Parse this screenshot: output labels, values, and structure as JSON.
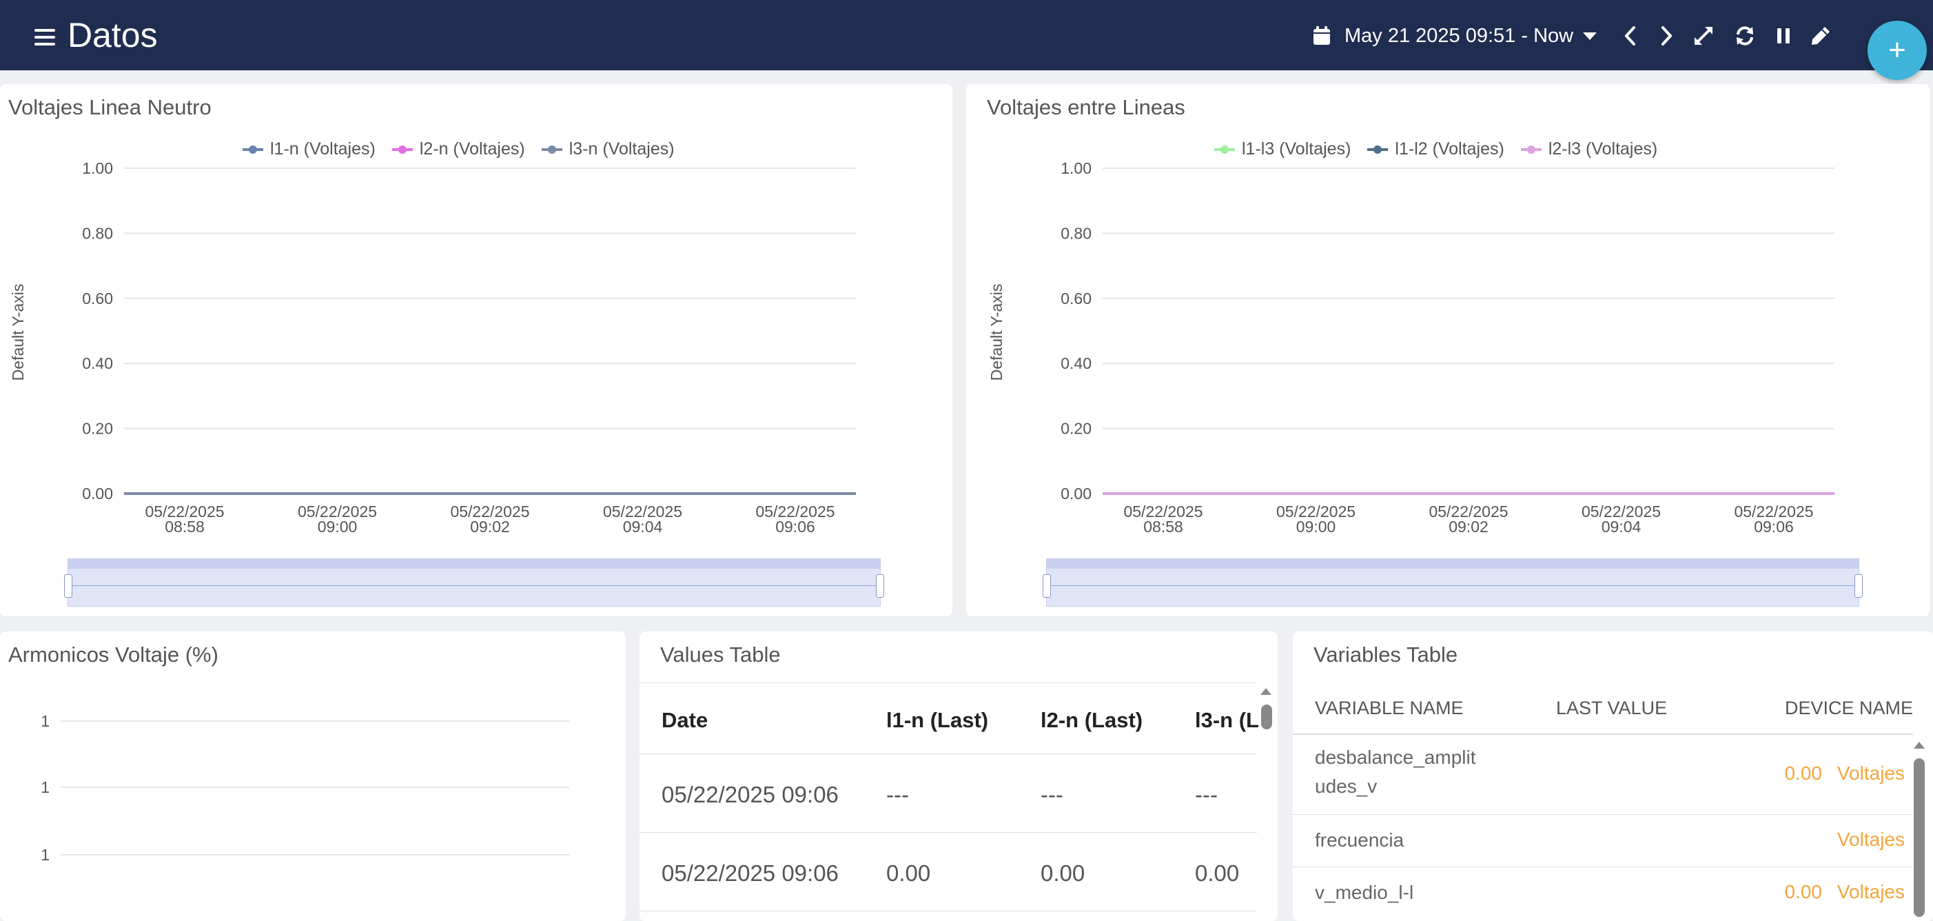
{
  "header": {
    "title": "Datos",
    "date_range": "May 21 2025 09:51 - Now",
    "fab_label": "+"
  },
  "colors": {
    "header_bg": "#1f2d50",
    "fab": "#3fb3d9",
    "accent_orange": "#f4a63c"
  },
  "icons": [
    "menu-icon",
    "calendar-icon",
    "chevron-down-icon",
    "chevron-left-icon",
    "chevron-right-icon",
    "expand-icon",
    "refresh-icon",
    "pause-icon",
    "edit-icon",
    "plus-icon"
  ],
  "chart1": {
    "title": "Voltajes Linea Neutro",
    "ylabel": "Default Y-axis",
    "legend": [
      {
        "label": "l1-n  (Voltajes)",
        "color": "#6a84b0"
      },
      {
        "label": "l2-n  (Voltajes)",
        "color": "#e26ee2"
      },
      {
        "label": "l3-n  (Voltajes)",
        "color": "#7d8aa6"
      }
    ]
  },
  "chart2": {
    "title": "Voltajes entre Lineas",
    "ylabel": "Default Y-axis",
    "legend": [
      {
        "label": "l1-l3  (Voltajes)",
        "color": "#9df09d"
      },
      {
        "label": "l1-l2  (Voltajes)",
        "color": "#4f6f8a"
      },
      {
        "label": "l2-l3  (Voltajes)",
        "color": "#dca3e0"
      }
    ]
  },
  "chart3": {
    "title": "Armonicos Voltaje (%)"
  },
  "chart_data": [
    {
      "type": "line",
      "title": "Voltajes Linea Neutro",
      "ylabel": "Default Y-axis",
      "ylim": [
        0,
        1
      ],
      "yticks": [
        "0.00",
        "0.20",
        "0.40",
        "0.60",
        "0.80",
        "1.00"
      ],
      "xticks": [
        [
          "05/22/2025",
          "08:58"
        ],
        [
          "05/22/2025",
          "09:00"
        ],
        [
          "05/22/2025",
          "09:02"
        ],
        [
          "05/22/2025",
          "09:04"
        ],
        [
          "05/22/2025",
          "09:06"
        ]
      ],
      "series": [
        {
          "name": "l1-n  (Voltajes)",
          "values": [
            0,
            0,
            0,
            0,
            0
          ]
        },
        {
          "name": "l2-n  (Voltajes)",
          "values": [
            0,
            0,
            0,
            0,
            0
          ]
        },
        {
          "name": "l3-n  (Voltajes)",
          "values": [
            0,
            0,
            0,
            0,
            0
          ]
        }
      ],
      "grid": true,
      "legend_position": "top"
    },
    {
      "type": "line",
      "title": "Voltajes entre Lineas",
      "ylabel": "Default Y-axis",
      "ylim": [
        0,
        1
      ],
      "yticks": [
        "0.00",
        "0.20",
        "0.40",
        "0.60",
        "0.80",
        "1.00"
      ],
      "xticks": [
        [
          "05/22/2025",
          "08:58"
        ],
        [
          "05/22/2025",
          "09:00"
        ],
        [
          "05/22/2025",
          "09:02"
        ],
        [
          "05/22/2025",
          "09:04"
        ],
        [
          "05/22/2025",
          "09:06"
        ]
      ],
      "series": [
        {
          "name": "l1-l3  (Voltajes)",
          "values": [
            0,
            0,
            0,
            0,
            0
          ]
        },
        {
          "name": "l1-l2  (Voltajes)",
          "values": [
            0,
            0,
            0,
            0,
            0
          ]
        },
        {
          "name": "l2-l3  (Voltajes)",
          "values": [
            0,
            0,
            0,
            0,
            0
          ]
        }
      ],
      "grid": true,
      "legend_position": "top"
    },
    {
      "type": "line",
      "title": "Armonicos Voltaje (%)",
      "yticks": [
        "1",
        "1",
        "1"
      ],
      "series": [],
      "grid": true
    }
  ],
  "values_table": {
    "title": "Values Table",
    "columns": [
      "Date",
      "l1-n (Last)",
      "l2-n (Last)",
      "l3-n (L"
    ],
    "rows": [
      [
        "05/22/2025 09:06",
        "---",
        "---",
        "---"
      ],
      [
        "05/22/2025 09:06",
        "0.00",
        "0.00",
        "0.00"
      ]
    ]
  },
  "variables_table": {
    "title": "Variables Table",
    "columns": [
      "VARIABLE NAME",
      "LAST VALUE",
      "DEVICE NAME"
    ],
    "rows": [
      {
        "name": "desbalance_amplit udes_v",
        "value": "0.00",
        "device": "Voltajes"
      },
      {
        "name": "frecuencia",
        "value": "",
        "device": "Voltajes"
      },
      {
        "name": "v_medio_l-l",
        "value": "0.00",
        "device": "Voltajes"
      }
    ]
  }
}
